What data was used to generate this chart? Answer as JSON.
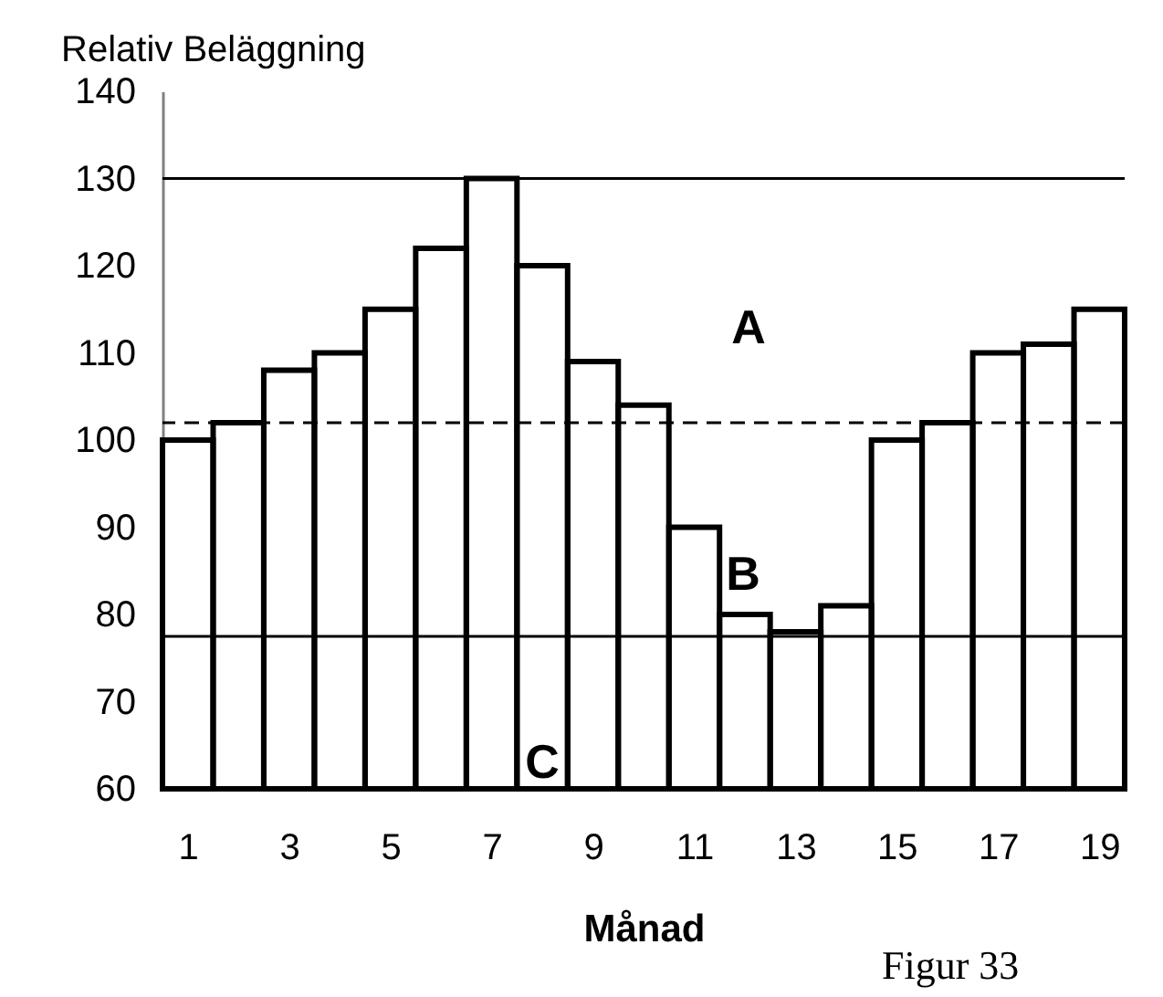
{
  "chart_data": {
    "type": "bar",
    "xlabel": "Månad",
    "ylabel": "Relativ Beläggning",
    "x": [
      1,
      2,
      3,
      4,
      5,
      6,
      7,
      8,
      9,
      10,
      11,
      12,
      13,
      14,
      15,
      16,
      17,
      18,
      19
    ],
    "values": [
      100,
      102,
      108,
      110,
      115,
      122,
      130,
      120,
      109,
      104,
      90,
      80,
      78,
      81,
      100,
      102,
      110,
      111,
      115
    ],
    "color": "#000000",
    "xlim": [
      0.5,
      19.5
    ],
    "xticks": [
      1,
      3,
      5,
      7,
      9,
      11,
      13,
      15,
      17,
      19
    ],
    "ylim": [
      60,
      140
    ],
    "yticks": [
      60,
      70,
      80,
      90,
      100,
      110,
      120,
      130,
      140
    ],
    "ref_lines": [
      {
        "axis": "y",
        "value": 130,
        "color": "#000000"
      },
      {
        "axis": "y",
        "value": 102,
        "color": "#000000",
        "line_style": "dashed"
      },
      {
        "axis": "y",
        "value": 77.5,
        "color": "#000000"
      }
    ],
    "annotations": [
      "A",
      "B",
      "C",
      "Figur 33"
    ],
    "grid": false
  }
}
